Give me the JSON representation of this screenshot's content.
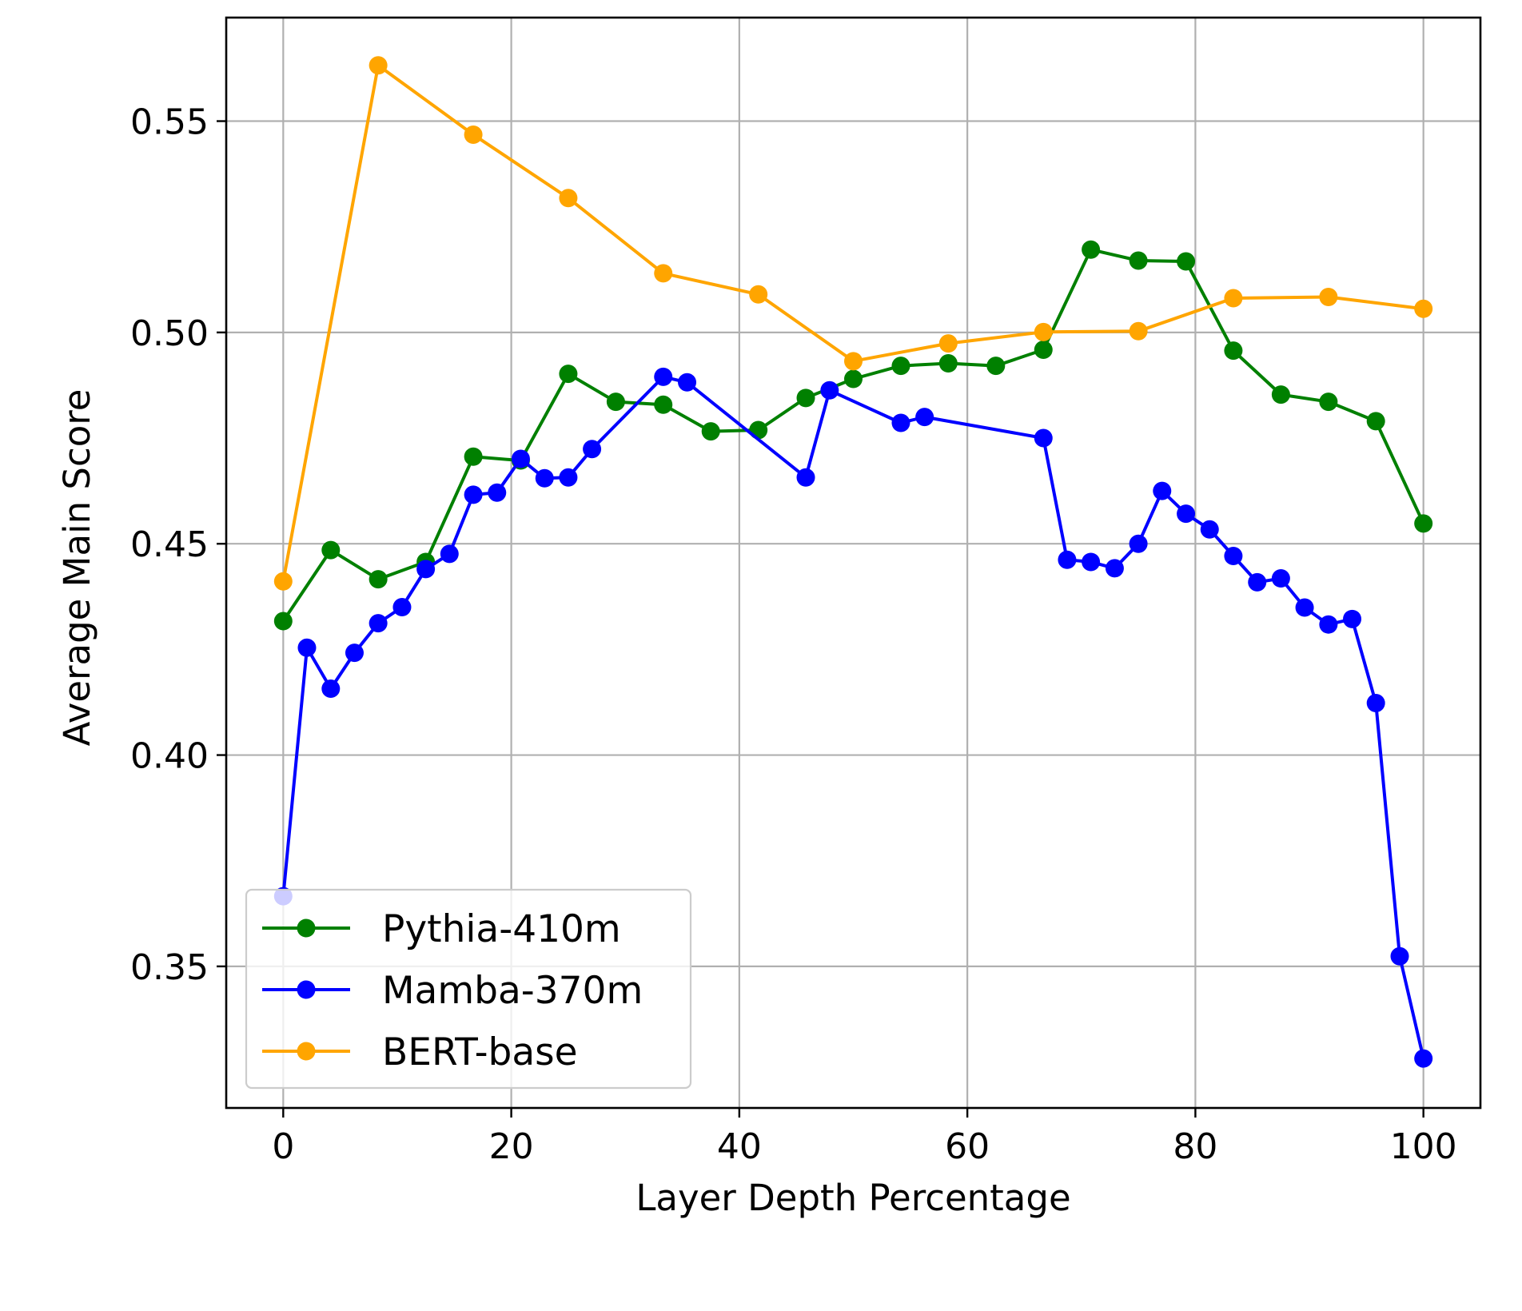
{
  "chart_data": {
    "type": "line",
    "title": "",
    "xlabel": "Layer Depth Percentage",
    "ylabel": "Average Main Score",
    "xlim": [
      -5,
      105
    ],
    "ylim": [
      0.3165,
      0.5745
    ],
    "xticks": [
      0,
      20,
      40,
      60,
      80,
      100
    ],
    "yticks": [
      0.35,
      0.4,
      0.45,
      0.5,
      0.55
    ],
    "xtick_labels": [
      "0",
      "20",
      "40",
      "60",
      "80",
      "100"
    ],
    "ytick_labels": [
      "0.35",
      "0.40",
      "0.45",
      "0.50",
      "0.55"
    ],
    "grid": true,
    "legend_position": "lower-left",
    "series": [
      {
        "name": "Pythia-410m",
        "color": "#008000",
        "x": [
          0,
          4.17,
          8.33,
          12.5,
          16.67,
          20.83,
          25,
          29.17,
          33.33,
          37.5,
          41.67,
          45.83,
          50,
          54.17,
          58.33,
          62.5,
          66.67,
          70.83,
          75,
          79.17,
          83.33,
          87.5,
          91.67,
          95.83,
          100
        ],
        "y": [
          0.4317,
          0.4485,
          0.4416,
          0.4457,
          0.4706,
          0.4697,
          0.4902,
          0.4836,
          0.4829,
          0.4766,
          0.4769,
          0.4845,
          0.489,
          0.4921,
          0.4927,
          0.4921,
          0.4959,
          0.5196,
          0.517,
          0.5168,
          0.4957,
          0.4853,
          0.4836,
          0.479,
          0.4548
        ]
      },
      {
        "name": "Mamba-370m",
        "color": "#0000ff",
        "x": [
          0,
          2.08,
          4.17,
          6.25,
          8.33,
          10.42,
          12.5,
          14.58,
          16.67,
          18.75,
          20.83,
          22.92,
          25,
          27.08,
          33.33,
          35.42,
          45.83,
          47.92,
          54.17,
          56.25,
          66.67,
          68.75,
          70.83,
          72.92,
          75,
          77.08,
          79.17,
          81.25,
          83.33,
          85.42,
          87.5,
          89.58,
          91.67,
          93.75,
          95.83,
          97.92,
          100
        ],
        "y": [
          0.3666,
          0.4254,
          0.4157,
          0.4242,
          0.4312,
          0.435,
          0.444,
          0.4476,
          0.4616,
          0.4621,
          0.4701,
          0.4655,
          0.4657,
          0.4724,
          0.4895,
          0.4882,
          0.4657,
          0.4863,
          0.4786,
          0.48,
          0.475,
          0.4462,
          0.4457,
          0.4442,
          0.45,
          0.4625,
          0.4571,
          0.4534,
          0.4471,
          0.4409,
          0.4418,
          0.4349,
          0.4309,
          0.4322,
          0.4123,
          0.3524,
          0.3282
        ]
      },
      {
        "name": "BERT-base",
        "color": "#ffa500",
        "x": [
          0,
          8.33,
          16.67,
          25,
          33.33,
          41.67,
          50,
          58.33,
          66.67,
          75,
          83.33,
          91.67,
          100
        ],
        "y": [
          0.4411,
          0.5632,
          0.5468,
          0.5318,
          0.514,
          0.509,
          0.4932,
          0.4974,
          0.5001,
          0.5003,
          0.5081,
          0.5084,
          0.5056
        ]
      }
    ]
  }
}
